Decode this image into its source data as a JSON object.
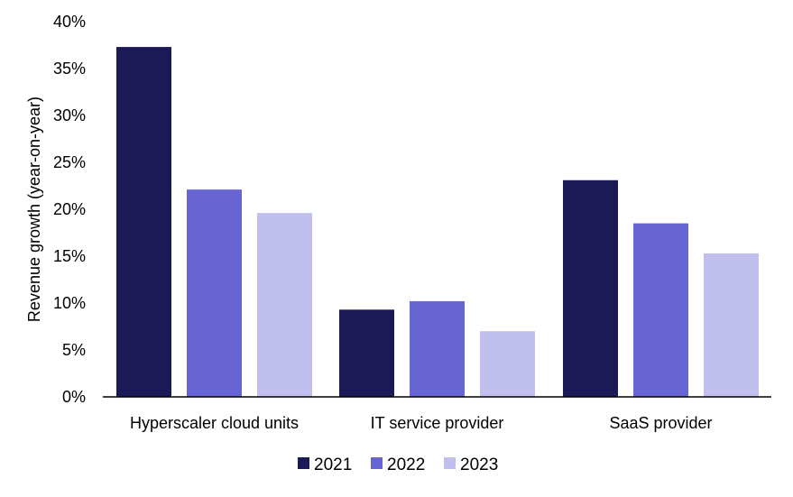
{
  "chart_data": {
    "type": "bar",
    "categories": [
      "Hyperscaler cloud units",
      "IT service provider",
      "SaaS provider"
    ],
    "series": [
      {
        "name": "2021",
        "color": "#1b1a56",
        "values": [
          37.3,
          9.3,
          23.1
        ]
      },
      {
        "name": "2022",
        "color": "#6764d4",
        "values": [
          22.1,
          10.2,
          18.5
        ]
      },
      {
        "name": "2023",
        "color": "#c1bfee",
        "values": [
          19.6,
          7.0,
          15.3
        ]
      }
    ],
    "title": "",
    "xlabel": "",
    "ylabel": "Revenue growth (year-on-year)",
    "ylim": [
      0,
      40
    ],
    "yticks": [
      "0%",
      "5%",
      "10%",
      "15%",
      "20%",
      "25%",
      "30%",
      "35%",
      "40%"
    ],
    "grid": false,
    "legend_position": "bottom-center"
  }
}
